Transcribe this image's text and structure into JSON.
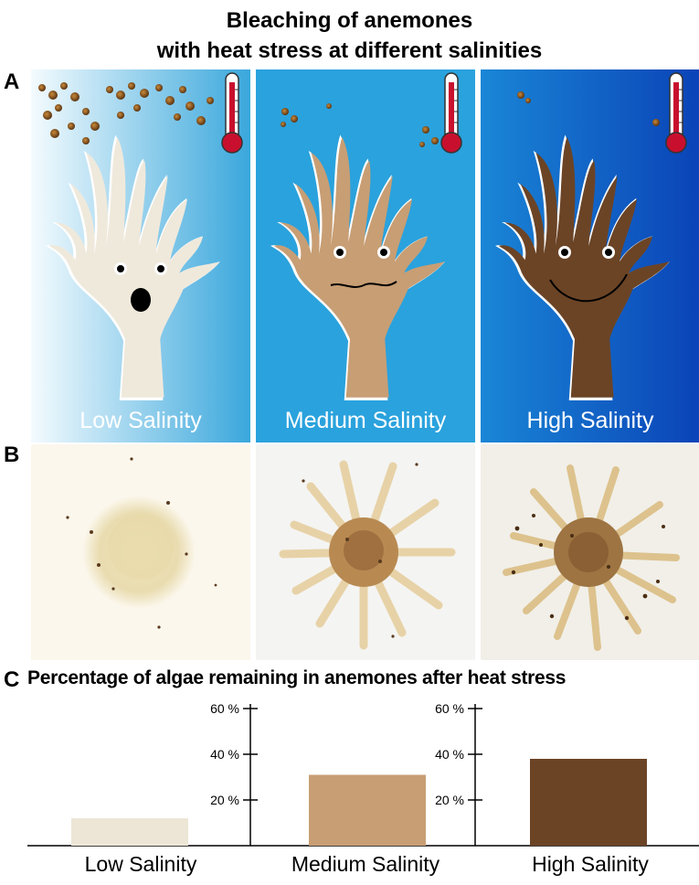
{
  "title": {
    "line1": "Bleaching of anemones",
    "line2": "with heat stress at different salinities"
  },
  "panel_labels": {
    "a": "A",
    "b": "B",
    "c": "C"
  },
  "panel_a": {
    "panels": [
      {
        "label": "Low Salinity",
        "body_color": "#efe9dc",
        "bg_from": "#f4fbfe",
        "bg_to": "#3aa7dc",
        "expression": "surprised"
      },
      {
        "label": "Medium Salinity",
        "body_color": "#c89e74",
        "bg_from": "#2aa2dd",
        "bg_to": "#2aa2dd",
        "expression": "wavy"
      },
      {
        "label": "High Salinity",
        "body_color": "#6b4426",
        "bg_from": "#1a86d6",
        "bg_to": "#0a43b7",
        "expression": "smile"
      }
    ],
    "icons": [
      "thermometer-icon",
      "algae-cell-icon"
    ]
  },
  "panel_b": {
    "photos": [
      "low-salinity-anemone-photo",
      "medium-salinity-anemone-photo",
      "high-salinity-anemone-photo"
    ]
  },
  "chart_title": "Percentage of algae  remaining in anemones after heat stress",
  "chart_data": {
    "type": "bar",
    "title": "Percentage of algae  remaining in anemones after heat stress",
    "categories": [
      "Low Salinity",
      "Medium Salinity",
      "High Salinity"
    ],
    "values": [
      12,
      31,
      38
    ],
    "colors": [
      "#ede6d6",
      "#c89e74",
      "#6b4426"
    ],
    "yticks": [
      20,
      40,
      60
    ],
    "ytick_labels": [
      "20 %",
      "40 %",
      "60 %"
    ],
    "ylim": [
      0,
      70
    ],
    "xlabel": "",
    "ylabel": "",
    "grid": false,
    "legend": "none"
  }
}
